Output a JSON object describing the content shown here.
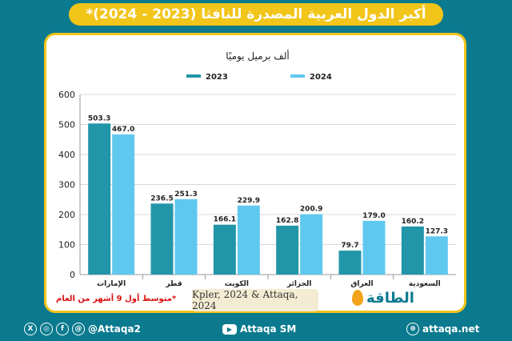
{
  "title": {
    "main": "أكبر الدول العربية المصدرة للنافثا (2023 - 2024)",
    "asterisk": "*"
  },
  "colors": {
    "background": "#0b7a8e",
    "accent": "#f2c51b",
    "series_2023": "#2196a8",
    "series_2024": "#5fc8ef"
  },
  "chart_data": {
    "type": "bar",
    "title": "ألف برميل يوميًا",
    "categories": [
      "الإمارات",
      "قطر",
      "الكويت",
      "الجزائر",
      "العراق",
      "السعودية"
    ],
    "series": [
      {
        "name": "2023",
        "values": [
          503.3,
          236.5,
          166.1,
          162.8,
          79.7,
          160.2
        ],
        "labels": [
          "503.3",
          "236.5",
          "166.1",
          "162.8",
          "79.7",
          "160.2"
        ]
      },
      {
        "name": "2024",
        "values": [
          467.0,
          251.3,
          229.9,
          200.9,
          179.0,
          127.3
        ],
        "labels": [
          "467.0",
          "251.3",
          "229.9",
          "200.9",
          "179.0",
          "127.3"
        ]
      }
    ],
    "ylim": [
      0,
      600
    ],
    "yticks": [
      "0",
      "100",
      "200",
      "300",
      "400",
      "500",
      "600"
    ],
    "grid": true,
    "legend_placement": "top-center"
  },
  "footnote": "*متوسط أول 9 أشهر من العام",
  "source": "Kpler, 2024 & Attaqa, 2024",
  "brand": {
    "name": "الطاقة",
    "icon": "oil-drop-icon"
  },
  "footer": {
    "social_handle": "@Attaqa2",
    "youtube": "Attaqa SM",
    "website": "attaqa.net"
  }
}
